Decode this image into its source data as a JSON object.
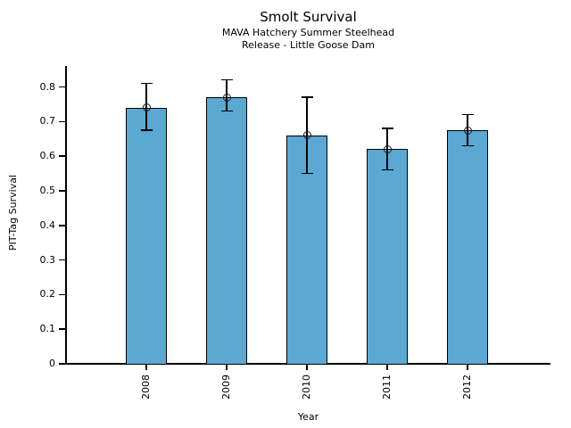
{
  "chart_data": {
    "type": "bar",
    "title": "Smolt Survival",
    "subtitle": [
      "MAVA Hatchery Summer Steelhead",
      "Release - Little Goose Dam"
    ],
    "xlabel": "Year",
    "ylabel": "PIT-Tag Survival",
    "categories": [
      "2008",
      "2009",
      "2010",
      "2011",
      "2012"
    ],
    "values": [
      0.74,
      0.77,
      0.66,
      0.62,
      0.675
    ],
    "error_low": [
      0.675,
      0.73,
      0.55,
      0.56,
      0.63
    ],
    "error_high": [
      0.81,
      0.82,
      0.77,
      0.68,
      0.72
    ],
    "yticks": [
      "0",
      "0.1",
      "0.2",
      "0.3",
      "0.4",
      "0.5",
      "0.6",
      "0.7",
      "0.8"
    ],
    "ytick_values": [
      0,
      0.1,
      0.2,
      0.3,
      0.4,
      0.5,
      0.6,
      0.7,
      0.8
    ],
    "ylim": [
      0,
      0.84
    ],
    "grid": false,
    "bar_color": "#5BA8D2",
    "bar_border_color": "#000000",
    "error_bar_color": "#000000",
    "marker": "open-circle"
  }
}
